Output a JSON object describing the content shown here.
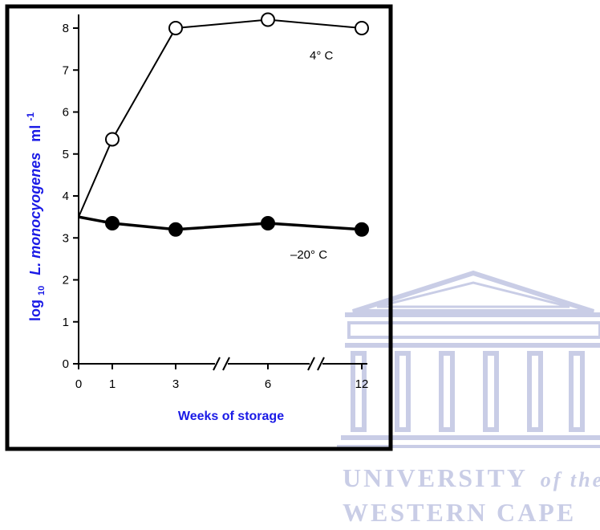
{
  "watermark": {
    "line1_main": "UNIVERSITY",
    "line1_italic": "of the",
    "line2": "WESTERN CAPE",
    "color": "#c9cde6"
  },
  "colors": {
    "axis_title": "#1a1ae6",
    "frame": "#000000"
  },
  "chart_data": {
    "type": "line",
    "xlabel": "Weeks of storage",
    "ylabel_prefix": "log",
    "ylabel_sub": "10",
    "ylabel_main": "L. monocyogenes",
    "ylabel_unit": "ml",
    "ylabel_sup": "-1",
    "x_ticks": [
      "0",
      "1",
      "3",
      "6",
      "12"
    ],
    "y_ticks": [
      "0",
      "1",
      "2",
      "3",
      "4",
      "5",
      "6",
      "7",
      "8"
    ],
    "ylim": [
      0,
      8.2
    ],
    "axis_breaks": [
      "between 3 and 6",
      "between 6 and 12"
    ],
    "x": [
      0,
      1,
      3,
      6,
      12
    ],
    "series": [
      {
        "name": "4° C",
        "values": [
          3.5,
          5.35,
          8.0,
          8.2,
          8.0
        ],
        "marker": "open-circle"
      },
      {
        "name": "–20° C",
        "values": [
          3.5,
          3.35,
          3.2,
          3.35,
          3.2
        ],
        "marker": "filled-circle"
      }
    ],
    "grid": false,
    "legend": "inline labels"
  }
}
